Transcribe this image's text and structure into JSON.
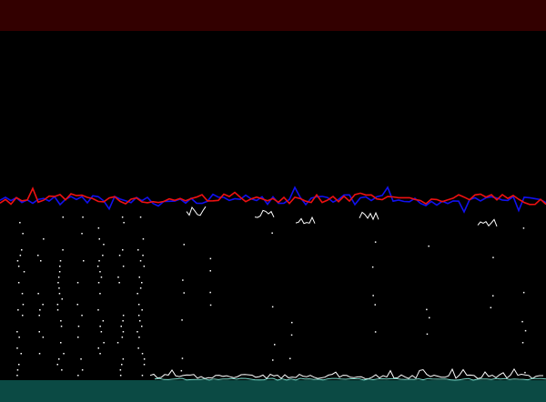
{
  "colors": {
    "header": "#330000",
    "background": "#000000",
    "footer": "#0b4a44",
    "trace_red": "#ee1111",
    "trace_blue": "#1111ee",
    "signal_white": "#ffffff",
    "signal_cyan": "#77ddcc"
  },
  "icons": {
    "header": "none",
    "footer": "none"
  }
}
